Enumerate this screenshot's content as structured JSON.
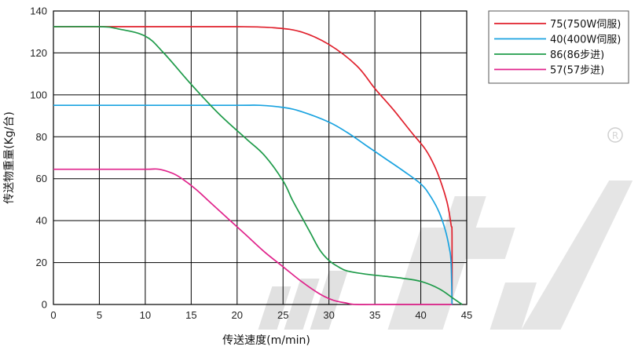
{
  "chart_data": {
    "type": "line",
    "title": "",
    "xlabel": "传送速度(m/min)",
    "ylabel": "传送物重量(Kg/台)",
    "xlim": [
      0,
      45
    ],
    "ylim": [
      0,
      140
    ],
    "xticks": [
      0,
      5,
      10,
      15,
      20,
      25,
      30,
      35,
      40,
      45
    ],
    "yticks": [
      0,
      20,
      40,
      60,
      80,
      100,
      120,
      140
    ],
    "grid": true,
    "legend_position": "top-right, outside plot",
    "series": [
      {
        "name": "75(750W伺服)",
        "color": "#e0202c",
        "points": [
          [
            0,
            132.5
          ],
          [
            10,
            132.5
          ],
          [
            20,
            132.5
          ],
          [
            24,
            132
          ],
          [
            27,
            130
          ],
          [
            30,
            124
          ],
          [
            33,
            114
          ],
          [
            35,
            103
          ],
          [
            37,
            93
          ],
          [
            39,
            82
          ],
          [
            40.5,
            74
          ],
          [
            41.5,
            66
          ],
          [
            42.3,
            57
          ],
          [
            42.9,
            48
          ],
          [
            43.3,
            38
          ],
          [
            43.4,
            33
          ],
          [
            43.4,
            0
          ]
        ]
      },
      {
        "name": "40(400W伺服)",
        "color": "#1aa3e0",
        "points": [
          [
            0,
            95
          ],
          [
            10,
            95
          ],
          [
            20,
            95
          ],
          [
            22.5,
            95
          ],
          [
            25,
            94
          ],
          [
            27,
            92
          ],
          [
            30,
            87
          ],
          [
            32,
            82
          ],
          [
            34,
            76
          ],
          [
            36,
            70
          ],
          [
            38,
            64
          ],
          [
            40,
            57.5
          ],
          [
            41,
            52
          ],
          [
            42,
            44
          ],
          [
            42.7,
            35
          ],
          [
            43.1,
            27
          ],
          [
            43.3,
            20
          ],
          [
            43.4,
            0
          ]
        ]
      },
      {
        "name": "86(86步进)",
        "color": "#1f9b4a",
        "points": [
          [
            0,
            132.5
          ],
          [
            5,
            132.5
          ],
          [
            7,
            131.5
          ],
          [
            10,
            128
          ],
          [
            12,
            120
          ],
          [
            15,
            105
          ],
          [
            18,
            91
          ],
          [
            21,
            79
          ],
          [
            23,
            71
          ],
          [
            25,
            59
          ],
          [
            26,
            50
          ],
          [
            27,
            42
          ],
          [
            28,
            34
          ],
          [
            29,
            26
          ],
          [
            30,
            21
          ],
          [
            31,
            18
          ],
          [
            32,
            16
          ],
          [
            34,
            14.5
          ],
          [
            36,
            13.5
          ],
          [
            38,
            12.5
          ],
          [
            40,
            11
          ],
          [
            42,
            7.5
          ],
          [
            43.5,
            3
          ],
          [
            44.5,
            0
          ]
        ]
      },
      {
        "name": "57(57步进)",
        "color": "#e0238b",
        "points": [
          [
            0,
            64.5
          ],
          [
            5,
            64.5
          ],
          [
            10,
            64.5
          ],
          [
            11.5,
            64.5
          ],
          [
            13,
            62.5
          ],
          [
            14,
            60
          ],
          [
            15.5,
            55
          ],
          [
            17,
            49
          ],
          [
            19,
            41
          ],
          [
            21,
            33
          ],
          [
            23,
            25
          ],
          [
            25,
            18
          ],
          [
            27,
            11
          ],
          [
            29,
            5
          ],
          [
            30.5,
            2
          ],
          [
            32,
            0.6
          ],
          [
            33,
            0
          ],
          [
            36,
            0
          ],
          [
            40,
            0
          ],
          [
            43.4,
            0
          ]
        ]
      }
    ]
  },
  "watermark": {
    "registered_mark": "R"
  }
}
